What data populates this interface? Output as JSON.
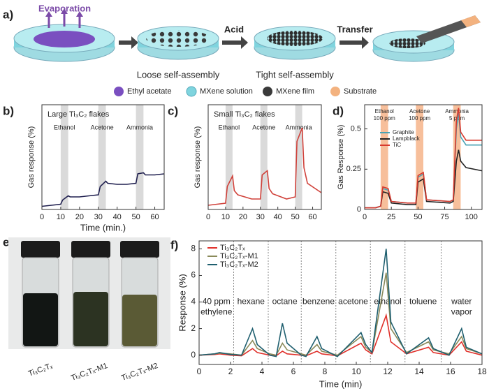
{
  "panel_labels": [
    "a)",
    "b)",
    "c)",
    "d)",
    "e)",
    "f)"
  ],
  "panel_a": {
    "steps": [
      "Evaporation",
      "Acid",
      "Transfer"
    ],
    "captions": [
      "Loose self-assembly",
      "Tight self-assembly"
    ],
    "legend": [
      "Ethyl acetate",
      "MXene solution",
      "MXene film",
      "Substrate"
    ]
  },
  "panel_e": {
    "samples": [
      "Ti₃C₂Tₓ",
      "Ti₃C₂Tₓ-M1",
      "Ti₃C₂Tₓ-M2"
    ]
  },
  "chart_data": [
    {
      "type": "line",
      "title": "Large Ti₃C₂ flakes",
      "x_label": "Time (min.)",
      "y_label": "Gas response (%)",
      "x": [
        0,
        5,
        10,
        11,
        14,
        15,
        20,
        25,
        30,
        31,
        34,
        35,
        40,
        45,
        50,
        51,
        54,
        55,
        60,
        65
      ],
      "values": [
        0.03,
        0.04,
        0.05,
        0.09,
        0.13,
        0.12,
        0.12,
        0.13,
        0.14,
        0.22,
        0.27,
        0.25,
        0.24,
        0.24,
        0.25,
        0.34,
        0.35,
        0.33,
        0.33,
        0.34
      ],
      "color": "#1f1f4f",
      "xlim": [
        0,
        65
      ],
      "ylim": [
        0,
        1
      ],
      "xticks": [
        0,
        10,
        20,
        30,
        40,
        50,
        60
      ],
      "band_color": "#d4d4d4",
      "bands": [
        {
          "label": [
            "Ethanol"
          ],
          "range": [
            10,
            14
          ]
        },
        {
          "label": [
            "Acetone"
          ],
          "range": [
            30,
            34
          ]
        },
        {
          "label": [
            "Ammonia"
          ],
          "range": [
            50,
            54
          ]
        }
      ]
    },
    {
      "type": "line",
      "title": "Small Ti₃C₂ flakes",
      "y_label": "Gas response (%)",
      "x": [
        0,
        5,
        10,
        11,
        14,
        15,
        17,
        25,
        30,
        31,
        34,
        35,
        37,
        45,
        50,
        51,
        54,
        55,
        57,
        65
      ],
      "values": [
        0.04,
        0.05,
        0.06,
        0.22,
        0.32,
        0.18,
        0.14,
        0.1,
        0.1,
        0.33,
        0.37,
        0.2,
        0.15,
        0.1,
        0.12,
        0.65,
        0.78,
        0.4,
        0.25,
        0.16
      ],
      "color": "#d0413a",
      "xlim": [
        0,
        65
      ],
      "ylim": [
        0,
        1
      ],
      "xticks": [
        0,
        10,
        20,
        30,
        40,
        50,
        60
      ],
      "band_color": "#d4d4d4",
      "bands": [
        {
          "label": [
            "Ethanol"
          ],
          "range": [
            10,
            14
          ]
        },
        {
          "label": [
            "Acetone"
          ],
          "range": [
            30,
            34
          ]
        },
        {
          "label": [
            "Ammonia"
          ],
          "range": [
            50,
            54
          ]
        }
      ]
    },
    {
      "type": "line",
      "y_label": "Gas Response (%)",
      "x": [
        0,
        10,
        15,
        17,
        22,
        25,
        40,
        48,
        50,
        55,
        58,
        80,
        83,
        86,
        88,
        90,
        95,
        110
      ],
      "series": [
        {
          "name": "Graphite",
          "color": "#4aa3b5",
          "values": [
            0.01,
            0.01,
            0.02,
            0.13,
            0.12,
            0.05,
            0.04,
            0.04,
            0.2,
            0.22,
            0.06,
            0.05,
            0.06,
            0.5,
            0.6,
            0.45,
            0.4,
            0.4
          ]
        },
        {
          "name": "Lampblack",
          "color": "#222222",
          "values": [
            0.01,
            0.01,
            0.02,
            0.11,
            0.1,
            0.04,
            0.03,
            0.03,
            0.17,
            0.19,
            0.05,
            0.04,
            0.05,
            0.3,
            0.37,
            0.3,
            0.26,
            0.24
          ]
        },
        {
          "name": "TiC",
          "color": "#d83a2e",
          "values": [
            0.01,
            0.01,
            0.02,
            0.14,
            0.13,
            0.05,
            0.04,
            0.04,
            0.21,
            0.23,
            0.06,
            0.05,
            0.06,
            0.55,
            0.63,
            0.48,
            0.43,
            0.43
          ]
        }
      ],
      "xlim": [
        0,
        110
      ],
      "ylim": [
        0,
        0.65
      ],
      "xticks": [
        0,
        25,
        50,
        75,
        100
      ],
      "yticks": [
        0,
        0.25,
        0.5
      ],
      "band_color": "#f6b48a",
      "bands": [
        {
          "label": [
            "Ethanol",
            "100 ppm"
          ],
          "range": [
            15,
            22
          ]
        },
        {
          "label": [
            "Acetone",
            "100 ppm"
          ],
          "range": [
            48,
            55
          ]
        },
        {
          "label": [
            "Ammonia",
            "5 ppm"
          ],
          "range": [
            83,
            90
          ]
        }
      ]
    },
    {
      "type": "line",
      "x_label": "Time (min)",
      "y_label": "Response (%)",
      "x": [
        0,
        1,
        1.3,
        2,
        2.7,
        3.4,
        3.7,
        4.5,
        4.9,
        5.3,
        5.6,
        6.5,
        6.8,
        7.5,
        7.8,
        8.8,
        10.3,
        10.6,
        11,
        11.9,
        12.2,
        13.2,
        14.6,
        14.9,
        15.9,
        16.7,
        17,
        18
      ],
      "series": [
        {
          "name": "Ti₃C₂Tₓ",
          "color": "#e0302a",
          "values": [
            0,
            0.05,
            0.1,
            0,
            -0.05,
            0.5,
            0.2,
            0,
            -0.05,
            0.3,
            0.1,
            0,
            -0.05,
            0.3,
            0.1,
            -0.05,
            0.9,
            0.4,
            0.1,
            3.0,
            1.0,
            0.1,
            0.6,
            0.2,
            0,
            1.0,
            0.3,
            0
          ]
        },
        {
          "name": "Ti₃C₂Tₓ-M1",
          "color": "#8a8a5a",
          "values": [
            0,
            0.1,
            0.15,
            0.1,
            0,
            1.1,
            0.5,
            0.1,
            0,
            0.9,
            0.4,
            0.1,
            0,
            0.8,
            0.3,
            0,
            1.4,
            0.6,
            0.2,
            6.2,
            2.0,
            0.2,
            1.0,
            0.4,
            0.1,
            1.4,
            0.5,
            0.1
          ]
        },
        {
          "name": "Ti₃C₂Tₓ-M2",
          "color": "#1f5f6f",
          "values": [
            0,
            0.1,
            0.2,
            0.05,
            0,
            2.0,
            0.8,
            0,
            -0.1,
            2.4,
            0.9,
            0,
            -0.1,
            1.4,
            0.5,
            -0.1,
            1.7,
            0.8,
            0.2,
            8.0,
            2.5,
            0.1,
            1.3,
            0.5,
            0,
            2.0,
            0.6,
            0.1
          ]
        }
      ],
      "xlim": [
        0,
        18
      ],
      "ylim": [
        -0.7,
        8.6
      ],
      "xticks": [
        0,
        2,
        4,
        6,
        8,
        10,
        12,
        14,
        16,
        18
      ],
      "yticks": [
        0,
        2,
        4,
        6,
        8
      ],
      "dividers": [
        2.2,
        4.4,
        6.5,
        8.7,
        10.9,
        13.1,
        15.4
      ],
      "segments": [
        [
          "40 ppm",
          "ethylene"
        ],
        [
          "hexane"
        ],
        [
          "octane"
        ],
        [
          "benzene"
        ],
        [
          "acetone"
        ],
        [
          "ethanol"
        ],
        [
          "toluene"
        ],
        [
          "water",
          "vapor"
        ]
      ]
    }
  ]
}
